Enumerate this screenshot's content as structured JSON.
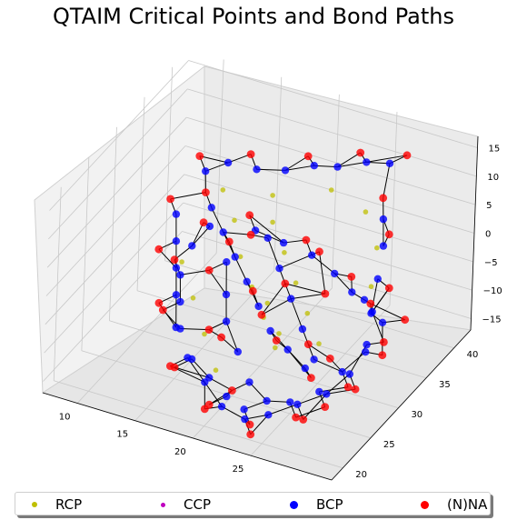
{
  "chart_data": {
    "type": "scatter",
    "title": "QTAIM Critical Points and Bond Paths",
    "projection": "3d",
    "grid": true,
    "xlabel": "",
    "ylabel": "",
    "zlabel": "",
    "xlim": [
      7,
      32
    ],
    "ylim": [
      18,
      43
    ],
    "zlim": [
      -17,
      17
    ],
    "x_ticks": [
      "10",
      "15",
      "20",
      "25"
    ],
    "y_ticks": [
      "20",
      "25",
      "30",
      "35",
      "40"
    ],
    "z_ticks": [
      "−15",
      "−10",
      "−5",
      "0",
      "5",
      "10",
      "15"
    ],
    "legend": {
      "placement": "bottom",
      "entries": [
        {
          "label": "RCP",
          "color": "#bfbf00"
        },
        {
          "label": "CCP",
          "color": "#bf00bf"
        },
        {
          "label": "BCP",
          "color": "#0000ff"
        },
        {
          "label": "(N)NA",
          "color": "#ff0000"
        }
      ]
    },
    "series": [
      {
        "name": "RCP",
        "color": "#bfbf00",
        "points": [
          [
            14,
            35,
            5
          ],
          [
            16,
            33,
            3
          ],
          [
            18,
            30,
            1
          ],
          [
            20,
            28,
            -1
          ],
          [
            22,
            26,
            -3
          ],
          [
            24,
            24,
            -5
          ],
          [
            17,
            38,
            -2
          ],
          [
            19,
            36,
            -4
          ],
          [
            21,
            34,
            -6
          ],
          [
            23,
            32,
            -8
          ],
          [
            25,
            30,
            -10
          ],
          [
            13,
            30,
            -3
          ],
          [
            15,
            28,
            -6
          ],
          [
            17,
            26,
            -9
          ],
          [
            19,
            24,
            -12
          ],
          [
            27,
            35,
            -4
          ],
          [
            26,
            38,
            -1
          ],
          [
            24,
            40,
            2
          ],
          [
            21,
            40,
            4
          ],
          [
            16,
            40,
            0
          ],
          [
            20,
            31,
            -7
          ],
          [
            22,
            29,
            -9
          ]
        ]
      },
      {
        "name": "CCP",
        "color": "#bf00bf",
        "points": []
      },
      {
        "name": "BCP",
        "color": "#0000ff",
        "points": [
          [
            12,
            36,
            6
          ],
          [
            13,
            38,
            6
          ],
          [
            15,
            39,
            5
          ],
          [
            17,
            40,
            5
          ],
          [
            19,
            41,
            6
          ],
          [
            21,
            41,
            7
          ],
          [
            23,
            42,
            8
          ],
          [
            25,
            42,
            9
          ],
          [
            14,
            33,
            4
          ],
          [
            16,
            31,
            3
          ],
          [
            18,
            29,
            2
          ],
          [
            20,
            27,
            1
          ],
          [
            22,
            25,
            0
          ],
          [
            24,
            23,
            -1
          ],
          [
            26,
            22,
            -2
          ],
          [
            28,
            21,
            -3
          ],
          [
            11,
            33,
            1
          ],
          [
            12,
            31,
            -1
          ],
          [
            13,
            29,
            -3
          ],
          [
            14,
            27,
            -5
          ],
          [
            15,
            25,
            -8
          ],
          [
            17,
            23,
            -10
          ],
          [
            19,
            22,
            -12
          ],
          [
            21,
            21,
            -14
          ],
          [
            23,
            21,
            -15
          ],
          [
            25,
            21,
            -13
          ],
          [
            27,
            22,
            -11
          ],
          [
            29,
            23,
            -9
          ],
          [
            30,
            25,
            -7
          ],
          [
            30,
            28,
            -5
          ],
          [
            29,
            31,
            -3
          ],
          [
            28,
            34,
            -1
          ],
          [
            27,
            37,
            1
          ],
          [
            26,
            39,
            3
          ],
          [
            18,
            35,
            -1
          ],
          [
            20,
            33,
            -3
          ],
          [
            22,
            31,
            -5
          ],
          [
            24,
            29,
            -7
          ],
          [
            26,
            27,
            -9
          ],
          [
            16,
            37,
            -3
          ],
          [
            18,
            38,
            -5
          ],
          [
            20,
            39,
            -7
          ],
          [
            22,
            39,
            -9
          ],
          [
            24,
            38,
            -10
          ],
          [
            26,
            36,
            -8
          ],
          [
            28,
            33,
            -6
          ],
          [
            15,
            34,
            -6
          ],
          [
            16,
            32,
            -9
          ],
          [
            17,
            30,
            -11
          ],
          [
            19,
            28,
            -13
          ],
          [
            21,
            26,
            -15
          ],
          [
            23,
            25,
            -16
          ],
          [
            13,
            35,
            -2
          ],
          [
            12,
            34,
            -5
          ],
          [
            12,
            32,
            -8
          ],
          [
            13,
            30,
            -10
          ],
          [
            14,
            28,
            -12
          ],
          [
            16,
            26,
            -14
          ],
          [
            18,
            25,
            -15
          ],
          [
            20,
            24,
            -16
          ],
          [
            22,
            23,
            -16
          ],
          [
            25,
            25,
            -15
          ],
          [
            27,
            26,
            -13
          ],
          [
            28,
            28,
            -11
          ],
          [
            29,
            30,
            -9
          ],
          [
            29,
            33,
            -7
          ]
        ]
      },
      {
        "name": "(N)NA",
        "color": "#ff0000",
        "points": [
          [
            11,
            37,
            7
          ],
          [
            14,
            40,
            6
          ],
          [
            18,
            42,
            6
          ],
          [
            22,
            43,
            8
          ],
          [
            26,
            43,
            10
          ],
          [
            13,
            34,
            5
          ],
          [
            17,
            30,
            3
          ],
          [
            21,
            26,
            1
          ],
          [
            25,
            22,
            -1
          ],
          [
            29,
            20,
            -3
          ],
          [
            10,
            34,
            2
          ],
          [
            11,
            30,
            -2
          ],
          [
            13,
            26,
            -6
          ],
          [
            16,
            22,
            -11
          ],
          [
            20,
            20,
            -14
          ],
          [
            24,
            20,
            -16
          ],
          [
            28,
            21,
            -12
          ],
          [
            31,
            24,
            -8
          ],
          [
            31,
            29,
            -5
          ],
          [
            29,
            34,
            -2
          ],
          [
            27,
            38,
            2
          ],
          [
            25,
            41,
            4
          ],
          [
            17,
            34,
            0
          ],
          [
            21,
            32,
            -4
          ],
          [
            25,
            28,
            -8
          ],
          [
            15,
            38,
            -2
          ],
          [
            19,
            40,
            -6
          ],
          [
            23,
            40,
            -10
          ],
          [
            27,
            35,
            -7
          ],
          [
            14,
            33,
            -7
          ],
          [
            16,
            29,
            -12
          ],
          [
            20,
            25,
            -16
          ],
          [
            12,
            36,
            -3
          ],
          [
            11,
            33,
            -7
          ],
          [
            12,
            29,
            -11
          ],
          [
            15,
            25,
            -15
          ],
          [
            19,
            23,
            -17
          ],
          [
            23,
            22,
            -17
          ],
          [
            26,
            24,
            -16
          ],
          [
            29,
            27,
            -12
          ],
          [
            30,
            31,
            -10
          ],
          [
            30,
            35,
            -8
          ],
          [
            22,
            36,
            -2
          ],
          [
            20,
            30,
            -8
          ],
          [
            24,
            33,
            -5
          ],
          [
            18,
            27,
            -10
          ],
          [
            26,
            30,
            -12
          ],
          [
            28,
            25,
            -14
          ]
        ]
      }
    ]
  }
}
